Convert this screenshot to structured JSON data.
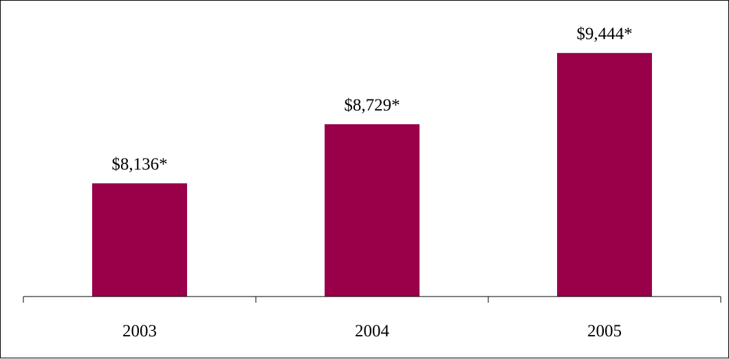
{
  "chart_data": {
    "type": "bar",
    "categories": [
      "2003",
      "2004",
      "2005"
    ],
    "values": [
      8136,
      8729,
      9444
    ],
    "data_labels": [
      "$8,136*",
      "$8,729*",
      "$9,444*"
    ],
    "bar_color": "#990049",
    "axis_color": "#000000",
    "ylim": [
      7000,
      9900
    ],
    "grid": false,
    "legend": "none"
  }
}
